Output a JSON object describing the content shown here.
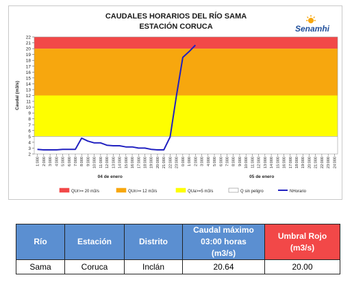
{
  "chart_data": {
    "type": "line",
    "title": "CAUDALES HORARIOS DEL RÍO SAMA",
    "subtitle": "ESTACIÓN CORUCA",
    "ylabel": "Caudal (m3/s)",
    "ylim": [
      2,
      22
    ],
    "yticks": [
      "2",
      "3",
      "4",
      "5",
      "6",
      "7",
      "8",
      "9",
      "10",
      "11",
      "12",
      "13",
      "14",
      "15",
      "16",
      "17",
      "18",
      "19",
      "20",
      "21",
      "22"
    ],
    "x_tick_labels": [
      "1:000",
      "2:000",
      "3:000",
      "4:000",
      "5:000",
      "6:000",
      "7:000",
      "8:000",
      "9:000",
      "10:000",
      "11:000",
      "12:000",
      "13:000",
      "14:000",
      "15:000",
      "16:000",
      "17:000",
      "18:000",
      "19:000",
      "20:000",
      "21:000",
      "22:000",
      "23:000",
      "0:000",
      "1:000",
      "2:000",
      "3:000",
      "4:000",
      "5:000",
      "6:000",
      "7:000",
      "8:000",
      "9:000",
      "10:000",
      "11:000",
      "12:000",
      "13:000",
      "14:000",
      "15:000",
      "16:000",
      "17:000",
      "18:000",
      "19:000",
      "20:000",
      "21:000",
      "22:000",
      "23:000",
      "24:000"
    ],
    "day_labels": [
      "04 de enero",
      "05 de enero"
    ],
    "thresholds": [
      {
        "name": "QUr>= 20 m3/s",
        "from": 20,
        "to": 22,
        "color": "#f24848"
      },
      {
        "name": "QUn>= 12 m3/s",
        "from": 12,
        "to": 20,
        "color": "#f7a70e"
      },
      {
        "name": "QUa>=5 m3/s",
        "from": 5,
        "to": 12,
        "color": "#fefe00"
      },
      {
        "name": "Q sin peligro",
        "from": 2,
        "to": 5,
        "color": "#ffffff"
      }
    ],
    "series": [
      {
        "name": "NHorario",
        "color": "#2020c0",
        "points": [
          {
            "x": 0,
            "y": 2.8
          },
          {
            "x": 1,
            "y": 2.7
          },
          {
            "x": 2,
            "y": 2.7
          },
          {
            "x": 3,
            "y": 2.7
          },
          {
            "x": 4,
            "y": 2.8
          },
          {
            "x": 5,
            "y": 2.8
          },
          {
            "x": 6,
            "y": 2.8
          },
          {
            "x": 7,
            "y": 4.7
          },
          {
            "x": 8,
            "y": 4.2
          },
          {
            "x": 9,
            "y": 3.9
          },
          {
            "x": 10,
            "y": 3.9
          },
          {
            "x": 11,
            "y": 3.5
          },
          {
            "x": 12,
            "y": 3.4
          },
          {
            "x": 13,
            "y": 3.4
          },
          {
            "x": 14,
            "y": 3.2
          },
          {
            "x": 15,
            "y": 3.2
          },
          {
            "x": 16,
            "y": 3.0
          },
          {
            "x": 17,
            "y": 3.0
          },
          {
            "x": 18,
            "y": 2.8
          },
          {
            "x": 19,
            "y": 2.7
          },
          {
            "x": 20,
            "y": 2.7
          },
          {
            "x": 21,
            "y": 4.9
          },
          {
            "x": 22,
            "y": 12.0
          },
          {
            "x": 23,
            "y": 18.5
          },
          {
            "x": 24,
            "y": 19.5
          },
          {
            "x": 25,
            "y": 20.6
          }
        ]
      }
    ]
  },
  "logo": {
    "name": "Senamhi"
  },
  "table": {
    "headers": {
      "rio": "Río",
      "estacion": "Estación",
      "distrito": "Distrito",
      "caudal_line1": "Caudal máximo",
      "caudal_line2": "03:00 horas",
      "caudal_line3": "(m3/s)",
      "umbral_line1": "Umbral  Rojo",
      "umbral_line2": "(m3/s)"
    },
    "row": {
      "rio": "Sama",
      "estacion": "Coruca",
      "distrito": "Inclán",
      "caudal": "20.64",
      "umbral": "20.00"
    }
  },
  "colors": {
    "header_blue": "#5b8fd1",
    "header_red": "#f24848"
  }
}
